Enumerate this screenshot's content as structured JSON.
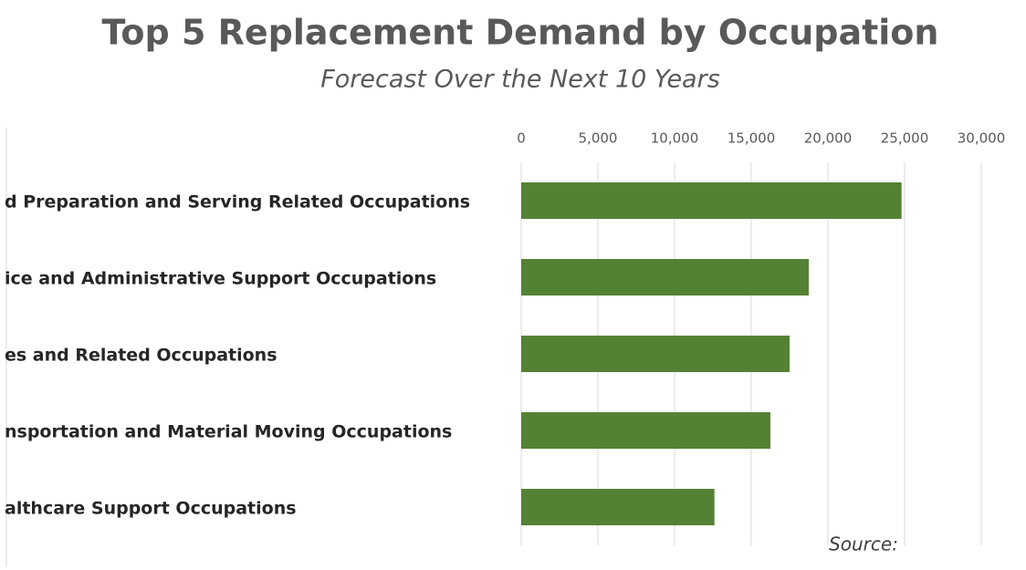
{
  "chart_data": {
    "type": "bar",
    "orientation": "horizontal",
    "title": "Top 5 Replacement Demand by Occupation",
    "subtitle": "Forecast Over the Next 10 Years",
    "annotation": "Source:",
    "categories": [
      "d Preparation and Serving Related Occupations",
      "ice and Administrative Support Occupations",
      "es and Related Occupations",
      "nsportation and Material Moving Occupations",
      "althcare Support Occupations"
    ],
    "values": [
      24800,
      18750,
      17500,
      16250,
      12600
    ],
    "color": "#548235",
    "xlim": [
      0,
      30000
    ],
    "xticks": [
      0,
      {
        "value": 5000,
        "label": "5,000"
      },
      {
        "value": 10000,
        "label": "10,000"
      },
      {
        "value": 15000,
        "label": "15,000"
      },
      {
        "value": 20000,
        "label": "20,000"
      },
      {
        "value": 25000,
        "label": "25,000"
      },
      {
        "value": 30000,
        "label": "30,000"
      }
    ],
    "grid": true
  }
}
